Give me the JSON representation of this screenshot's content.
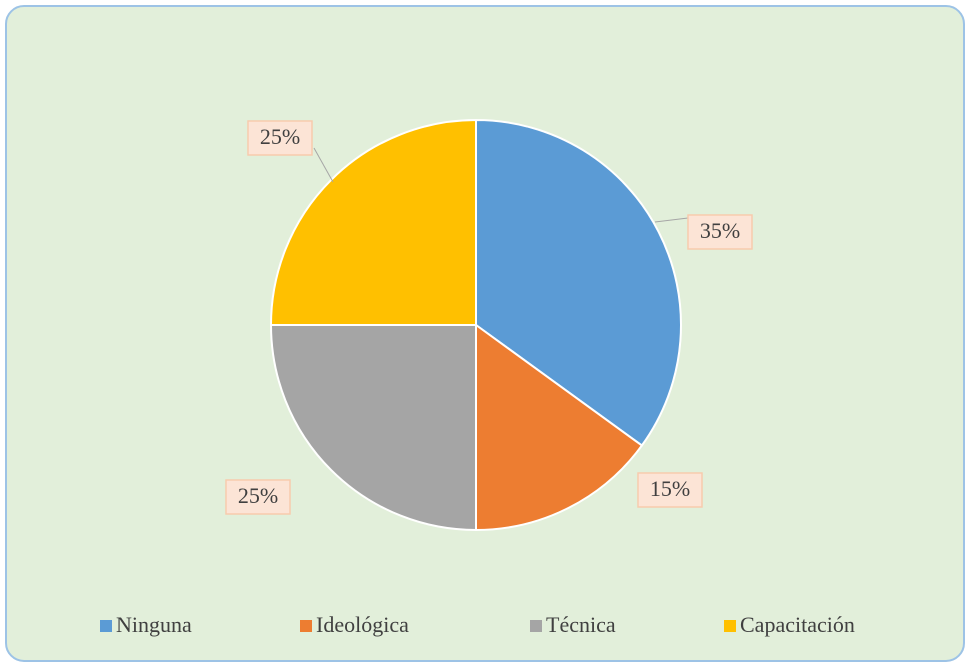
{
  "chart_data": {
    "type": "pie",
    "categories": [
      "Ninguna",
      "Ideológica",
      "Técnica",
      "Capacitación"
    ],
    "values": [
      35,
      15,
      25,
      25
    ],
    "value_labels": [
      "35%",
      "15%",
      "25%",
      "25%"
    ],
    "colors": [
      "#5b9bd5",
      "#ed7d31",
      "#a5a5a5",
      "#ffc000"
    ],
    "legend": "bottom"
  }
}
